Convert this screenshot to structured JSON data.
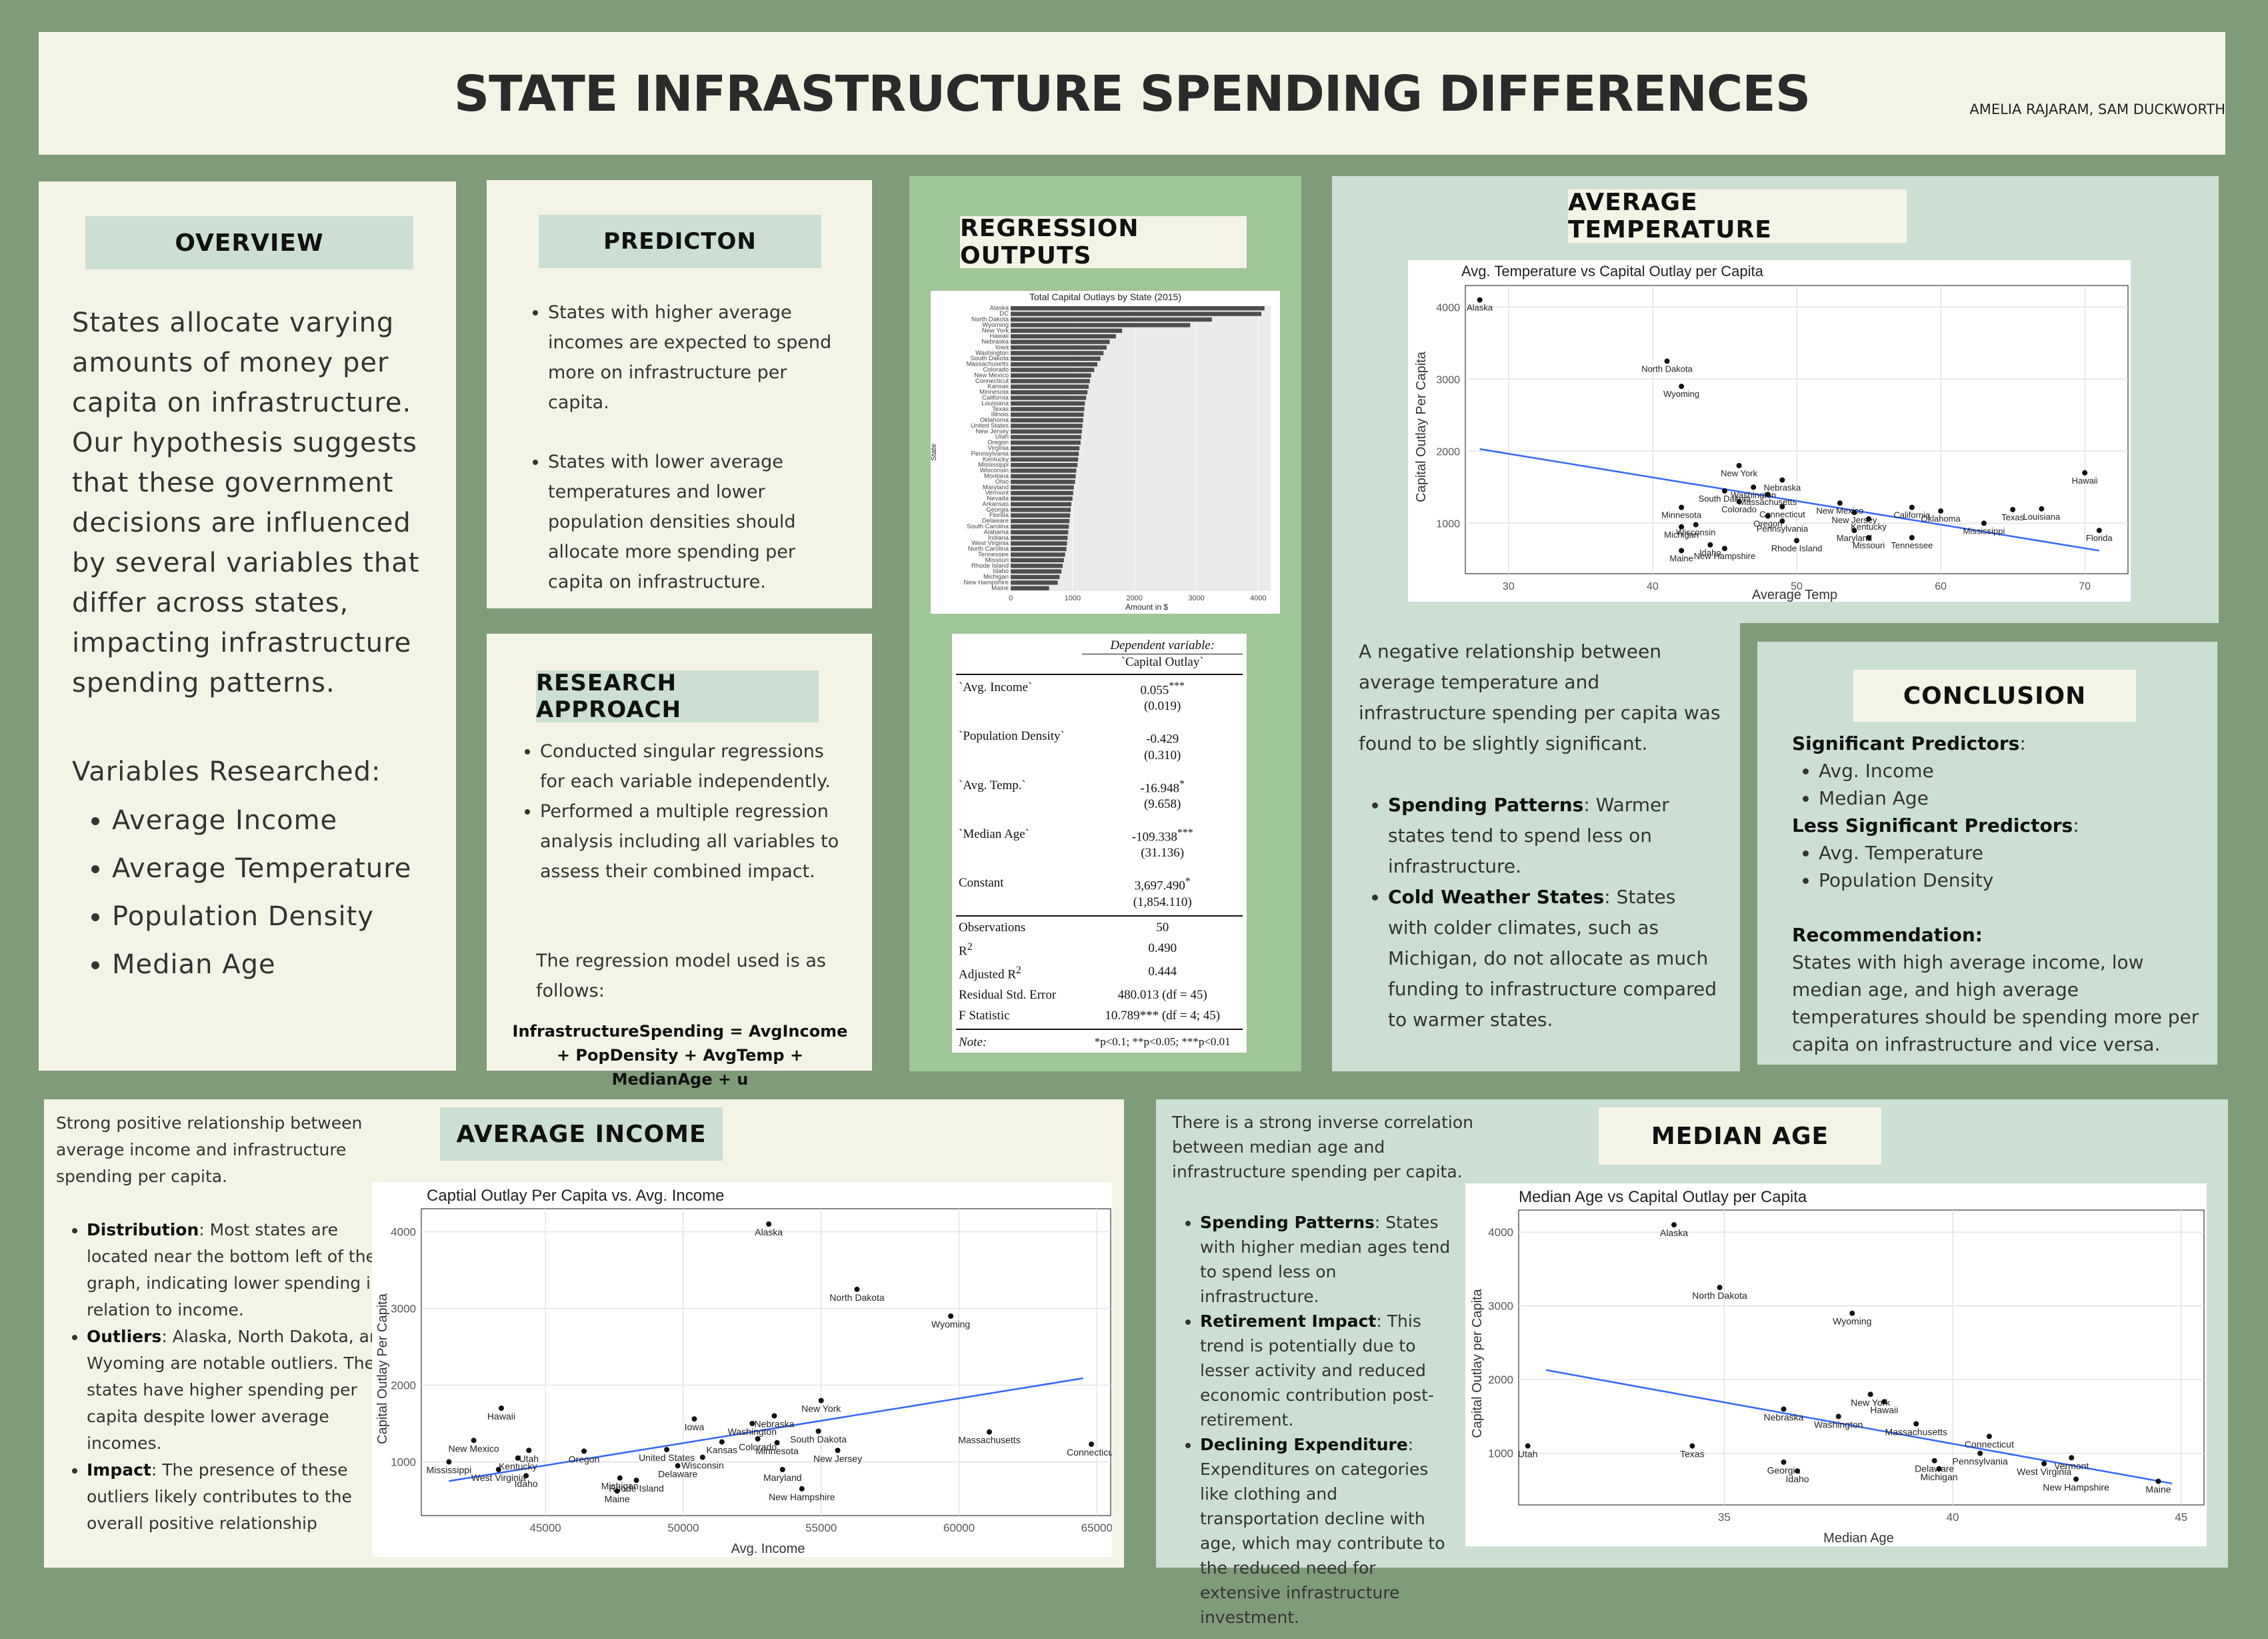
{
  "header": {
    "title": "STATE INFRASTRUCTURE SPENDING DIFFERENCES",
    "authors": "AMELIA RAJARAM, SAM DUCKWORTH"
  },
  "overview": {
    "title": "OVERVIEW",
    "body": "States allocate varying amounts of money per capita on infrastructure. Our hypothesis suggests that these government decisions are influenced by several variables that differ across states, impacting infrastructure spending patterns.",
    "variables_heading": "Variables Researched:",
    "variables": [
      "Average Income",
      "Average Temperature",
      "Population Density",
      "Median Age"
    ]
  },
  "prediction": {
    "title": "PREDICTON",
    "bullets": [
      "States with higher average incomes are expected to spend more on infrastructure per capita.",
      "States with lower average temperatures and lower population densities should allocate more spending per capita on infrastructure."
    ]
  },
  "research": {
    "title": "RESEARCH APPROACH",
    "bullets": [
      "Conducted singular regressions for each variable independently.",
      "Performed a multiple regression analysis including all variables to assess their combined impact."
    ],
    "model_intro": "The regression model used is as follows:",
    "formula": "InfrastructureSpending = AvgIncome + PopDensity + AvgTemp + MedianAge + u"
  },
  "regression": {
    "title": "REGRESSION OUTPUTS",
    "bar_chart": {
      "title": "Total Capital Outlays by State (2015)",
      "xlabel": "Amount in $",
      "ylabel": "State",
      "xticks": [
        "0",
        "1000",
        "2000",
        "3000",
        "4000"
      ]
    },
    "table": {
      "dep_var": "Dependent variable:",
      "dep_name": "`Capital Outlay`",
      "rows": [
        {
          "name": "`Avg. Income`",
          "coef": "0.055",
          "stars": "***",
          "se": "(0.019)"
        },
        {
          "name": "`Population Density`",
          "coef": "-0.429",
          "stars": "",
          "se": "(0.310)"
        },
        {
          "name": "`Avg. Temp.`",
          "coef": "-16.948",
          "stars": "*",
          "se": "(9.658)"
        },
        {
          "name": "`Median Age`",
          "coef": "-109.338",
          "stars": "***",
          "se": "(31.136)"
        },
        {
          "name": "Constant",
          "coef": "3,697.490",
          "stars": "*",
          "se": "(1,854.110)"
        }
      ],
      "stats": [
        {
          "name": "Observations",
          "value": "50"
        },
        {
          "name": "R2",
          "value": "0.490"
        },
        {
          "name": "Adjusted R2",
          "value": "0.444"
        },
        {
          "name": "Residual Std. Error",
          "value": "480.013 (df = 45)"
        },
        {
          "name": "F Statistic",
          "value": "10.789*** (df = 4; 45)"
        }
      ],
      "note_label": "Note:",
      "note_text": "*p<0.1; **p<0.05; ***p<0.01"
    }
  },
  "temperature": {
    "title": "AVERAGE TEMPERATURE",
    "intro": "A negative relationship between average temperature and infrastructure spending per capita was found to be slightly significant.",
    "bullets": [
      {
        "bold": "Spending Patterns",
        "text": ": Warmer states tend to spend less on infrastructure."
      },
      {
        "bold": "Cold Weather States",
        "text": ": States with colder climates, such as Michigan, do not allocate as much funding to infrastructure compared to warmer states."
      }
    ]
  },
  "conclusion": {
    "title": "CONCLUSION",
    "sig_heading": "Significant Predictors",
    "sig": [
      "Avg. Income",
      "Median Age"
    ],
    "less_heading": "Less Significant Predictors",
    "less": [
      "Avg. Temperature",
      "Population Density"
    ],
    "rec_heading": "Recommendation:",
    "rec_text": "States with high average income, low median age, and high average temperatures should be spending more per capita on infrastructure and vice versa."
  },
  "income": {
    "title": "AVERAGE INCOME",
    "intro": "Strong positive relationship between average income and infrastructure spending per capita.",
    "bullets": [
      {
        "bold": "Distribution",
        "text": ": Most states are located near the bottom left of the graph, indicating lower spending in relation to income."
      },
      {
        "bold": "Outliers",
        "text": ": Alaska, North Dakota, and Wyoming are notable outliers. These states have higher spending per capita despite lower average incomes."
      },
      {
        "bold": "Impact",
        "text": ": The presence of these outliers likely contributes to the overall positive relationship"
      }
    ]
  },
  "median_age": {
    "title": "MEDIAN AGE",
    "intro": "There is a strong inverse correlation between median age and infrastructure spending per capita.",
    "bullets": [
      {
        "bold": "Spending Patterns",
        "text": ": States with higher median ages tend to spend less on infrastructure."
      },
      {
        "bold": "Retirement Impact",
        "text": ": This trend is potentially due to lesser activity and reduced economic contribution post-retirement."
      },
      {
        "bold": "Declining Expenditure",
        "text": ": Expenditures on categories like clothing and transportation decline with age, which may contribute to the reduced need for extensive infrastructure investment."
      }
    ]
  },
  "chart_data": [
    {
      "type": "bar",
      "title": "Total Capital Outlays by State (2015)",
      "xlabel": "Amount in $",
      "ylabel": "State",
      "xlim": [
        0,
        4200
      ],
      "categories": [
        "Alaska",
        "DC",
        "North Dakota",
        "Wyoming",
        "New York",
        "Hawaii",
        "Nebraska",
        "Iowa",
        "Washington",
        "South Dakota",
        "Massachusetts",
        "Colorado",
        "New Mexico",
        "Connecticut",
        "Kansas",
        "Minnesota",
        "California",
        "Louisiana",
        "Texas",
        "Illinois",
        "Oklahoma",
        "United States",
        "New Jersey",
        "Utah",
        "Oregon",
        "Virginia",
        "Pennsylvania",
        "Kentucky",
        "Mississippi",
        "Wisconsin",
        "Montana",
        "Ohio",
        "Maryland",
        "Vermont",
        "Nevada",
        "Arkansas",
        "Georgia",
        "Florida",
        "Delaware",
        "South Carolina",
        "Alabama",
        "Indiana",
        "West Virginia",
        "North Carolina",
        "Tennessee",
        "Missouri",
        "Rhode Island",
        "Idaho",
        "Michigan",
        "New Hampshire",
        "Maine"
      ],
      "values": [
        4100,
        4050,
        3250,
        2900,
        1800,
        1700,
        1600,
        1550,
        1500,
        1450,
        1400,
        1350,
        1300,
        1280,
        1260,
        1240,
        1220,
        1200,
        1190,
        1180,
        1170,
        1160,
        1150,
        1140,
        1130,
        1110,
        1100,
        1090,
        1080,
        1060,
        1050,
        1040,
        1020,
        1010,
        1000,
        980,
        970,
        960,
        950,
        940,
        930,
        920,
        910,
        900,
        880,
        860,
        840,
        820,
        790,
        760,
        620
      ]
    },
    {
      "type": "scatter",
      "title": "Avg. Temperature vs Capital Outlay per Capita",
      "xlabel": "Average Temp",
      "ylabel": "Capital Outlay Per Capita",
      "xlim": [
        27,
        73
      ],
      "ylim": [
        300,
        4300
      ],
      "xticks": [
        30,
        40,
        50,
        60,
        70
      ],
      "yticks": [
        1000,
        2000,
        3000,
        4000
      ],
      "trend": [
        [
          28,
          2030
        ],
        [
          71,
          620
        ]
      ],
      "points": [
        {
          "label": "Alaska",
          "x": 28,
          "y": 4100
        },
        {
          "label": "North Dakota",
          "x": 41,
          "y": 3250
        },
        {
          "label": "Wyoming",
          "x": 42,
          "y": 2900
        },
        {
          "label": "New York",
          "x": 46,
          "y": 1800
        },
        {
          "label": "Nebraska",
          "x": 49,
          "y": 1600
        },
        {
          "label": "Washington",
          "x": 47,
          "y": 1500
        },
        {
          "label": "South Dakota",
          "x": 45,
          "y": 1450
        },
        {
          "label": "Colorado",
          "x": 46,
          "y": 1300
        },
        {
          "label": "Massachusetts",
          "x": 48,
          "y": 1400
        },
        {
          "label": "Minnesota",
          "x": 42,
          "y": 1220
        },
        {
          "label": "Connecticut",
          "x": 49,
          "y": 1230
        },
        {
          "label": "New Mexico",
          "x": 53,
          "y": 1280
        },
        {
          "label": "New Jersey",
          "x": 54,
          "y": 1150
        },
        {
          "label": "Kentucky",
          "x": 55,
          "y": 1060
        },
        {
          "label": "California",
          "x": 58,
          "y": 1220
        },
        {
          "label": "Oklahoma",
          "x": 60,
          "y": 1170
        },
        {
          "label": "Texas",
          "x": 65,
          "y": 1190
        },
        {
          "label": "Louisiana",
          "x": 67,
          "y": 1200
        },
        {
          "label": "Hawaii",
          "x": 70,
          "y": 1700
        },
        {
          "label": "Mississippi",
          "x": 63,
          "y": 1000
        },
        {
          "label": "Florida",
          "x": 71,
          "y": 900
        },
        {
          "label": "Oregon",
          "x": 48,
          "y": 1100
        },
        {
          "label": "Pennsylvania",
          "x": 49,
          "y": 1030
        },
        {
          "label": "Maryland",
          "x": 54,
          "y": 900
        },
        {
          "label": "Rhode Island",
          "x": 50,
          "y": 760
        },
        {
          "label": "Missouri",
          "x": 55,
          "y": 800
        },
        {
          "label": "Tennessee",
          "x": 58,
          "y": 800
        },
        {
          "label": "Wisconsin",
          "x": 43,
          "y": 980
        },
        {
          "label": "Michigan",
          "x": 42,
          "y": 950
        },
        {
          "label": "Idaho",
          "x": 44,
          "y": 700
        },
        {
          "label": "New Hampshire",
          "x": 45,
          "y": 650
        },
        {
          "label": "Maine",
          "x": 42,
          "y": 620
        }
      ]
    },
    {
      "type": "scatter",
      "title": "Captial Outlay Per Capita vs. Avg. Income",
      "xlabel": "Avg. Income",
      "ylabel": "Capital Outlay Per Capita",
      "xlim": [
        40500,
        65500
      ],
      "ylim": [
        300,
        4300
      ],
      "xticks": [
        45000,
        50000,
        55000,
        60000,
        65000
      ],
      "yticks": [
        1000,
        2000,
        3000,
        4000
      ],
      "trend": [
        [
          41500,
          750
        ],
        [
          64500,
          2090
        ]
      ],
      "points": [
        {
          "label": "Alaska",
          "x": 53100,
          "y": 4100
        },
        {
          "label": "North Dakota",
          "x": 56300,
          "y": 3250
        },
        {
          "label": "Wyoming",
          "x": 59700,
          "y": 2900
        },
        {
          "label": "New York",
          "x": 55000,
          "y": 1800
        },
        {
          "label": "Hawaii",
          "x": 43400,
          "y": 1700
        },
        {
          "label": "Nebraska",
          "x": 53300,
          "y": 1600
        },
        {
          "label": "Iowa",
          "x": 50400,
          "y": 1560
        },
        {
          "label": "Washington",
          "x": 52500,
          "y": 1500
        },
        {
          "label": "South Dakota",
          "x": 54900,
          "y": 1400
        },
        {
          "label": "Massachusetts",
          "x": 61100,
          "y": 1390
        },
        {
          "label": "Connecticut",
          "x": 64800,
          "y": 1230
        },
        {
          "label": "New Mexico",
          "x": 42400,
          "y": 1280
        },
        {
          "label": "Mississippi",
          "x": 41500,
          "y": 1000
        },
        {
          "label": "Colorado",
          "x": 52700,
          "y": 1300
        },
        {
          "label": "Minnesota",
          "x": 53400,
          "y": 1250
        },
        {
          "label": "New Jersey",
          "x": 55600,
          "y": 1150
        },
        {
          "label": "Maryland",
          "x": 53600,
          "y": 900
        },
        {
          "label": "Kansas",
          "x": 51400,
          "y": 1260
        },
        {
          "label": "Utah",
          "x": 44400,
          "y": 1150
        },
        {
          "label": "Kentucky",
          "x": 44000,
          "y": 1050
        },
        {
          "label": "Oregon",
          "x": 46400,
          "y": 1140
        },
        {
          "label": "United States",
          "x": 49400,
          "y": 1160
        },
        {
          "label": "Wisconsin",
          "x": 50700,
          "y": 1060
        },
        {
          "label": "Delaware",
          "x": 49800,
          "y": 950
        },
        {
          "label": "Idaho",
          "x": 44300,
          "y": 820
        },
        {
          "label": "West Virginia",
          "x": 43300,
          "y": 900
        },
        {
          "label": "Rhode Island",
          "x": 48300,
          "y": 760
        },
        {
          "label": "Michigan",
          "x": 47700,
          "y": 790
        },
        {
          "label": "Maine",
          "x": 47600,
          "y": 620
        },
        {
          "label": "New Hampshire",
          "x": 54300,
          "y": 650
        }
      ]
    },
    {
      "type": "scatter",
      "title": "Median Age vs Capital Outlay per Capita",
      "xlabel": "Median Age",
      "ylabel": "Capital Outlay per Capita",
      "xlim": [
        30.5,
        45.5
      ],
      "ylim": [
        300,
        4300
      ],
      "xticks": [
        35,
        40,
        45
      ],
      "yticks": [
        1000,
        2000,
        3000,
        4000
      ],
      "trend": [
        [
          31.1,
          2130
        ],
        [
          44.8,
          590
        ]
      ],
      "points": [
        {
          "label": "Alaska",
          "x": 33.9,
          "y": 4100
        },
        {
          "label": "North Dakota",
          "x": 34.9,
          "y": 3250
        },
        {
          "label": "Wyoming",
          "x": 37.8,
          "y": 2900
        },
        {
          "label": "New York",
          "x": 38.2,
          "y": 1800
        },
        {
          "label": "Hawaii",
          "x": 38.5,
          "y": 1700
        },
        {
          "label": "Nebraska",
          "x": 36.3,
          "y": 1600
        },
        {
          "label": "Washington",
          "x": 37.5,
          "y": 1500
        },
        {
          "label": "Massachusetts",
          "x": 39.2,
          "y": 1400
        },
        {
          "label": "Connecticut",
          "x": 40.8,
          "y": 1230
        },
        {
          "label": "Utah",
          "x": 30.7,
          "y": 1100
        },
        {
          "label": "Texas",
          "x": 34.3,
          "y": 1100
        },
        {
          "label": "Georgia",
          "x": 36.3,
          "y": 880
        },
        {
          "label": "Idaho",
          "x": 36.6,
          "y": 760
        },
        {
          "label": "Delaware",
          "x": 39.6,
          "y": 900
        },
        {
          "label": "Pennsylvania",
          "x": 40.6,
          "y": 1000
        },
        {
          "label": "Vermont",
          "x": 42.6,
          "y": 940
        },
        {
          "label": "West Virginia",
          "x": 42.0,
          "y": 860
        },
        {
          "label": "New Hampshire",
          "x": 42.7,
          "y": 650
        },
        {
          "label": "Michigan",
          "x": 39.7,
          "y": 790
        },
        {
          "label": "Maine",
          "x": 44.5,
          "y": 620
        }
      ]
    }
  ]
}
